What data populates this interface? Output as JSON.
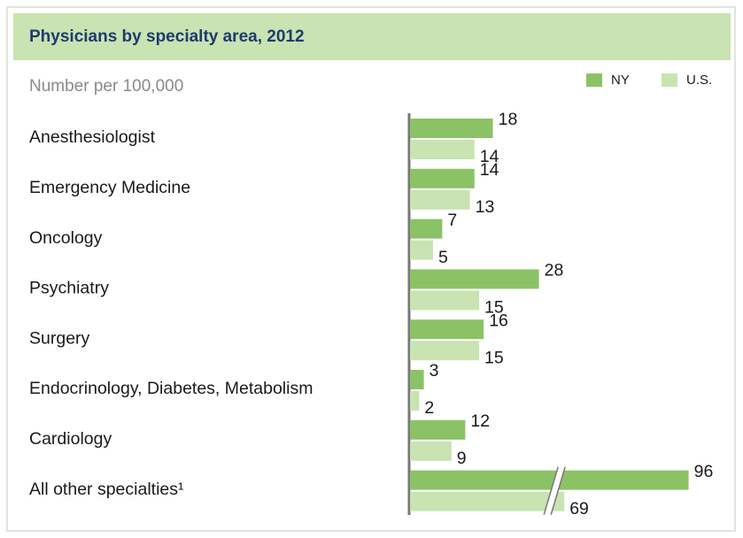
{
  "chart_data": {
    "type": "grouped-bar-horizontal",
    "title": "Physicians by specialty area, 2012",
    "subtitle": "Number per 100,000",
    "categories": [
      "Anesthesiologist",
      "Emergency Medicine",
      "Oncology",
      "Psychiatry",
      "Surgery",
      "Endocrinology, Diabetes, Metabolism",
      "Cardiology",
      "All other specialties¹"
    ],
    "series": [
      {
        "name": "NY",
        "color": "#8cc266",
        "values": [
          18,
          14,
          7,
          28,
          16,
          3,
          12,
          96
        ]
      },
      {
        "name": "U.S.",
        "color": "#c9e3b2",
        "values": [
          14,
          13,
          5,
          15,
          15,
          2,
          9,
          69
        ]
      }
    ],
    "axis_break": true,
    "legend": "top-right"
  }
}
